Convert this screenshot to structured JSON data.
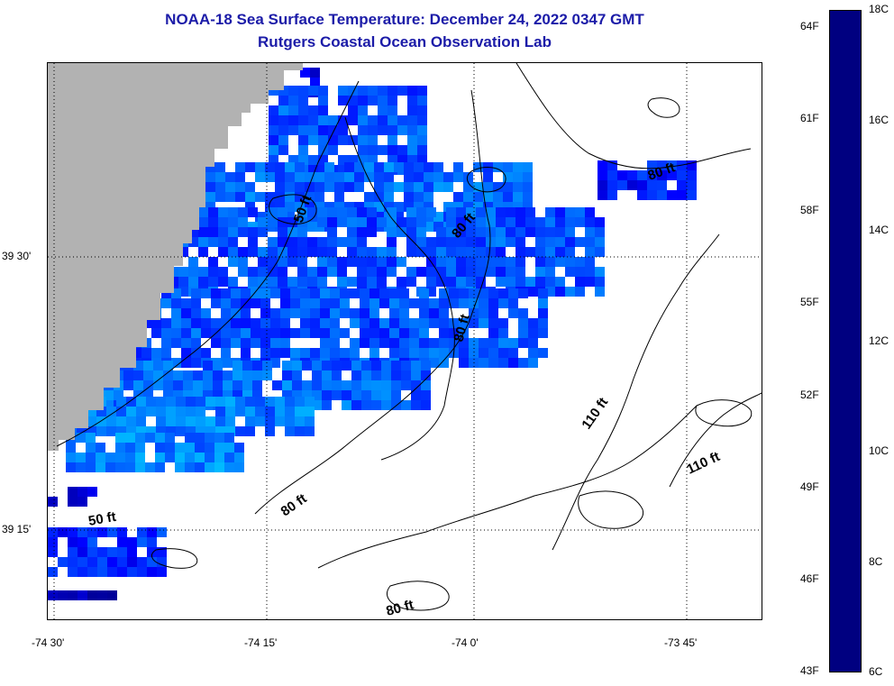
{
  "header": {
    "title_line1": "NOAA-18 Sea Surface Temperature:  December 24, 2022 0347 GMT",
    "title_line2": "Rutgers Coastal Ocean Observation Lab"
  },
  "map": {
    "x_ticks": [
      "-74 30'",
      "-74 15'",
      "-74 0'",
      "-73 45'"
    ],
    "y_ticks": [
      "39 30'",
      "39 15'"
    ],
    "contours": [
      "50 ft",
      "50 ft",
      "80 ft",
      "80 ft",
      "80 ft",
      "80 ft",
      "80 ft",
      "110 ft",
      "110 ft"
    ],
    "colors": {
      "land": "#b2b2b2",
      "title": "#1c1ca8"
    }
  },
  "colorbar": {
    "celsius_labels": [
      "18C",
      "16C",
      "14C",
      "12C",
      "10C",
      "8C",
      "6C"
    ],
    "fahrenheit_labels": [
      "64F",
      "61F",
      "58F",
      "55F",
      "52F",
      "49F",
      "46F",
      "43F"
    ],
    "min_c": 6,
    "max_c": 18
  }
}
